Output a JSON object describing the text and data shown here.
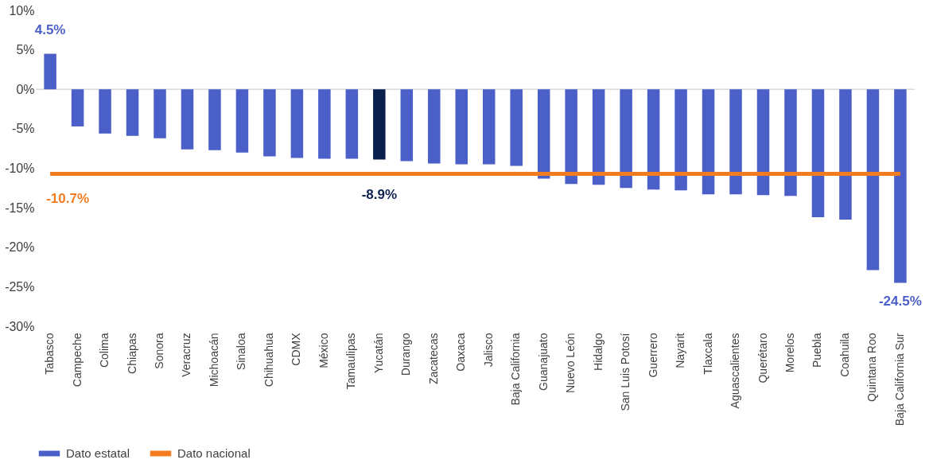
{
  "chart_data": {
    "type": "bar",
    "categories": [
      "Tabasco",
      "Campeche",
      "Colima",
      "Chiapas",
      "Sonora",
      "Veracruz",
      "Michoacán",
      "Sinaloa",
      "Chihuahua",
      "CDMX",
      "México",
      "Tamaulipas",
      "Yucatán",
      "Durango",
      "Zacatecas",
      "Oaxaca",
      "Jalisco",
      "Baja California",
      "Guanajuato",
      "Nuevo León",
      "Hidalgo",
      "San Luis Potosí",
      "Guerrero",
      "Nayarit",
      "Tlaxcala",
      "Aguascalientes",
      "Querétaro",
      "Morelos",
      "Puebla",
      "Coahuila",
      "Quintana Roo",
      "Baja California Sur"
    ],
    "series": [
      {
        "name": "Dato estatal",
        "color": "#4a5fc8",
        "colors": [
          "#4a5fc8",
          "#4a5fc8",
          "#4a5fc8",
          "#4a5fc8",
          "#4a5fc8",
          "#4a5fc8",
          "#4a5fc8",
          "#4a5fc8",
          "#4a5fc8",
          "#4a5fc8",
          "#4a5fc8",
          "#4a5fc8",
          "#0b1f4d",
          "#4a5fc8",
          "#4a5fc8",
          "#4a5fc8",
          "#4a5fc8",
          "#4a5fc8",
          "#4a5fc8",
          "#4a5fc8",
          "#4a5fc8",
          "#4a5fc8",
          "#4a5fc8",
          "#4a5fc8",
          "#4a5fc8",
          "#4a5fc8",
          "#4a5fc8",
          "#4a5fc8",
          "#4a5fc8",
          "#4a5fc8",
          "#4a5fc8",
          "#4a5fc8"
        ],
        "values": [
          4.5,
          -4.7,
          -5.6,
          -5.9,
          -6.2,
          -7.6,
          -7.7,
          -8.0,
          -8.5,
          -8.7,
          -8.8,
          -8.8,
          -8.9,
          -9.1,
          -9.4,
          -9.5,
          -9.5,
          -9.7,
          -11.3,
          -12.0,
          -12.1,
          -12.5,
          -12.7,
          -12.8,
          -13.3,
          -13.3,
          -13.4,
          -13.5,
          -16.2,
          -16.5,
          -22.9,
          -24.5
        ],
        "value_labels": [
          "4.5%",
          null,
          null,
          null,
          null,
          null,
          null,
          null,
          null,
          null,
          null,
          null,
          "-8.9%",
          null,
          null,
          null,
          null,
          null,
          null,
          null,
          null,
          null,
          null,
          null,
          null,
          null,
          null,
          null,
          null,
          null,
          null,
          "-24.5%"
        ]
      },
      {
        "name": "Dato nacional",
        "type": "line",
        "color": "#f47c20",
        "values": [
          -10.7,
          -10.7,
          -10.7,
          -10.7,
          -10.7,
          -10.7,
          -10.7,
          -10.7,
          -10.7,
          -10.7,
          -10.7,
          -10.7,
          -10.7,
          -10.7,
          -10.7,
          -10.7,
          -10.7,
          -10.7,
          -10.7,
          -10.7,
          -10.7,
          -10.7,
          -10.7,
          -10.7,
          -10.7,
          -10.7,
          -10.7,
          -10.7,
          -10.7,
          -10.7,
          -10.7,
          -10.7
        ],
        "value_labels": [
          "-10.7%",
          null,
          null,
          null,
          null,
          null,
          null,
          null,
          null,
          null,
          null,
          null,
          null,
          null,
          null,
          null,
          null,
          null,
          null,
          null,
          null,
          null,
          null,
          null,
          null,
          null,
          null,
          null,
          null,
          null,
          null,
          null
        ]
      }
    ],
    "ylim": [
      -30,
      10
    ],
    "yticks": [
      {
        "value": -30,
        "label": "-30%"
      },
      {
        "value": -25,
        "label": "-25%"
      },
      {
        "value": -20,
        "label": "-20%"
      },
      {
        "value": -15,
        "label": "-15%"
      },
      {
        "value": -10,
        "label": "-10%"
      },
      {
        "value": -5,
        "label": "-5%"
      },
      {
        "value": 0,
        "label": "0%"
      },
      {
        "value": 5,
        "label": "5%"
      },
      {
        "value": 10,
        "label": "10%"
      }
    ],
    "ref_lines": [
      {
        "axis": "y",
        "value": 0,
        "color": "#d9d9d9"
      }
    ],
    "grid": false,
    "legend": "bottom"
  }
}
